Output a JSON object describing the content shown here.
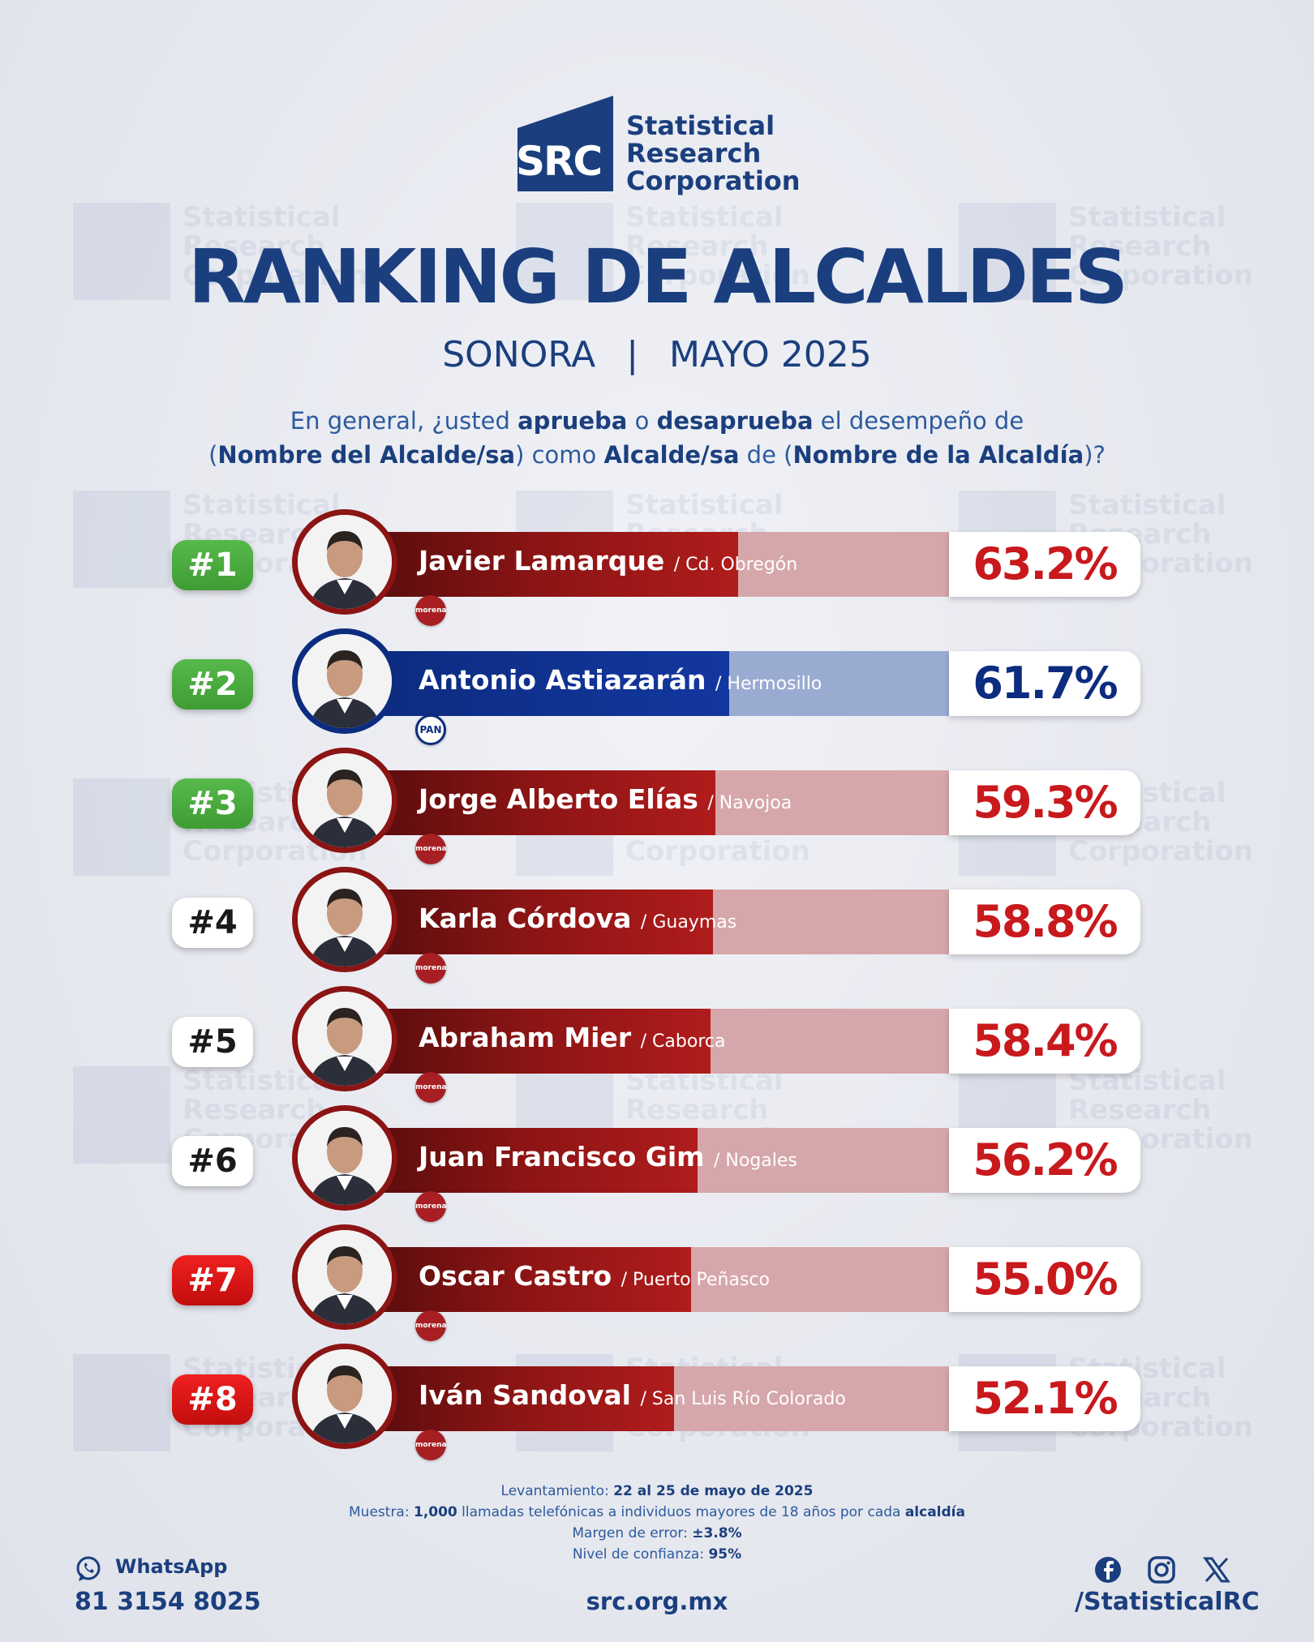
{
  "brand": {
    "logo_letters": "SRC",
    "name_lines": [
      "Statistical",
      "Research",
      "Corporation"
    ],
    "primary_color": "#1b3f7e"
  },
  "title": "RANKING DE ALCALDES",
  "subtitle": {
    "state": "SONORA",
    "separator": "|",
    "period": "MAYO 2025"
  },
  "question": {
    "p1": "En general, ¿usted ",
    "b1": "aprueba",
    "p2": " o ",
    "b2": "desaprueba",
    "p3": " el desempeño de",
    "p4": "(",
    "b3": "Nombre del Alcalde/sa",
    "p5": ") como ",
    "b4": "Alcalde/sa",
    "p6": " de (",
    "b5": "Nombre de la Alcaldía",
    "p7": ")?"
  },
  "chart_data": {
    "type": "bar",
    "orientation": "horizontal",
    "xlim": [
      0,
      100
    ],
    "items": [
      {
        "rank": "#1",
        "rank_color": "green",
        "name": "Javier Lamarque",
        "city": "/ Cd. Obregón",
        "value": 63.2,
        "label": "63.2%",
        "party": "morena",
        "bar_color": "red"
      },
      {
        "rank": "#2",
        "rank_color": "green",
        "name": "Antonio Astiazarán",
        "city": "/ Hermosillo",
        "value": 61.7,
        "label": "61.7%",
        "party": "PAN",
        "bar_color": "blue"
      },
      {
        "rank": "#3",
        "rank_color": "green",
        "name": "Jorge Alberto Elías",
        "city": "/ Navojoa",
        "value": 59.3,
        "label": "59.3%",
        "party": "morena",
        "bar_color": "red"
      },
      {
        "rank": "#4",
        "rank_color": "white",
        "name": "Karla Córdova",
        "city": "/ Guaymas",
        "value": 58.8,
        "label": "58.8%",
        "party": "morena",
        "bar_color": "red"
      },
      {
        "rank": "#5",
        "rank_color": "white",
        "name": "Abraham Mier",
        "city": "/ Caborca",
        "value": 58.4,
        "label": "58.4%",
        "party": "morena",
        "bar_color": "red"
      },
      {
        "rank": "#6",
        "rank_color": "white",
        "name": "Juan Francisco Gim",
        "city": "/ Nogales",
        "value": 56.2,
        "label": "56.2%",
        "party": "morena",
        "bar_color": "red"
      },
      {
        "rank": "#7",
        "rank_color": "red",
        "name": "Oscar Castro",
        "city": "/ Puerto Peñasco",
        "value": 55.0,
        "label": "55.0%",
        "party": "morena",
        "bar_color": "red"
      },
      {
        "rank": "#8",
        "rank_color": "red",
        "name": "Iván Sandoval",
        "city": "/ San Luis Río Colorado",
        "value": 52.1,
        "label": "52.1%",
        "party": "morena",
        "bar_color": "red"
      }
    ]
  },
  "methodology": {
    "l1_label": "Levantamiento: ",
    "l1_value": "22 al 25 de mayo de 2025",
    "l2_label": "Muestra: ",
    "l2_value": "1,000",
    "l2_text": " llamadas telefónicas a individuos mayores de 18 años por cada ",
    "l2_bold": "alcaldía",
    "l3_label": "Margen de error: ",
    "l3_value": "±3.8%",
    "l4_label": "Nivel de confianza: ",
    "l4_value": "95%"
  },
  "footer": {
    "whatsapp_label": "WhatsApp",
    "whatsapp_number": "81 3154 8025",
    "website": "src.org.mx",
    "social_handle": "/StatisticalRC",
    "social_icons": [
      "facebook-icon",
      "instagram-icon",
      "x-icon"
    ]
  }
}
